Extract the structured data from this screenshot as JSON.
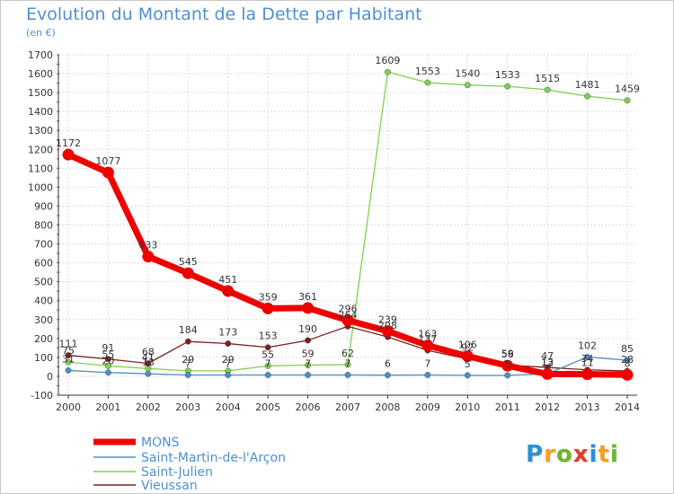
{
  "title": "Evolution du Montant de la Dette par Habitant",
  "subtitle": "(en €)",
  "logo": {
    "letters": [
      "P",
      "r",
      "o",
      "x",
      "i",
      "t",
      "i"
    ],
    "colors": [
      "#2e8fd6",
      "#f2a21a",
      "#6db72f",
      "#e03b2f",
      "#2e8fd6",
      "#f2a21a",
      "#6db72f"
    ]
  },
  "chart_data": {
    "type": "line",
    "title": "Evolution du Montant de la Dette par Habitant",
    "ylabel": "(en €)",
    "x": [
      2000,
      2001,
      2002,
      2003,
      2004,
      2005,
      2006,
      2007,
      2008,
      2009,
      2010,
      2011,
      2012,
      2013,
      2014
    ],
    "ylim": [
      -100,
      1700
    ],
    "yticks": [
      -100,
      0,
      100,
      200,
      300,
      400,
      500,
      600,
      700,
      800,
      900,
      1000,
      1100,
      1200,
      1300,
      1400,
      1500,
      1600,
      1700
    ],
    "grid": true,
    "legend": "bottom-left",
    "series": [
      {
        "name": "MONS",
        "color": "#ee0000",
        "values": [
          1172,
          1077,
          633,
          545,
          451,
          359,
          361,
          296,
          239,
          163,
          106,
          56,
          12,
          11,
          8
        ]
      },
      {
        "name": "Saint-Martin-de-l'Arçon",
        "color": "#4a90c8",
        "values": [
          31,
          20,
          13,
          7,
          7,
          7,
          7,
          7,
          6,
          7,
          5,
          5,
          13,
          102,
          85
        ]
      },
      {
        "name": "Saint-Julien",
        "color": "#80d050",
        "values": [
          75,
          55,
          41,
          29,
          29,
          55,
          59,
          62,
          1609,
          1553,
          1540,
          1533,
          1515,
          1481,
          1459
        ]
      },
      {
        "name": "Vieussan",
        "color": "#7a2020",
        "values": [
          111,
          91,
          68,
          184,
          173,
          153,
          190,
          264,
          208,
          137,
          92,
          59,
          47,
          34,
          28
        ]
      }
    ]
  }
}
